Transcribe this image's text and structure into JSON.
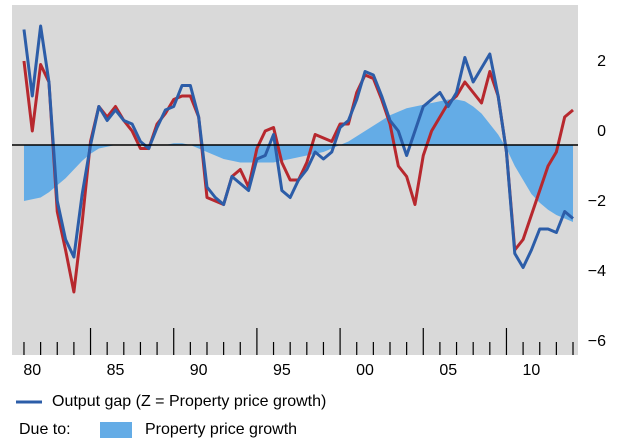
{
  "chart_data": {
    "type": "line",
    "x": [
      1980,
      1980.5,
      1981,
      1981.5,
      1982,
      1982.5,
      1983,
      1983.5,
      1984,
      1984.5,
      1985,
      1985.5,
      1986,
      1986.5,
      1987,
      1987.5,
      1988,
      1988.5,
      1989,
      1989.5,
      1990,
      1990.5,
      1991,
      1991.5,
      1992,
      1992.5,
      1993,
      1993.5,
      1994,
      1994.5,
      1995,
      1995.5,
      1996,
      1996.5,
      1997,
      1997.5,
      1998,
      1998.5,
      1999,
      1999.5,
      2000,
      2000.5,
      2001,
      2001.5,
      2002,
      2002.5,
      2003,
      2003.5,
      2004,
      2004.5,
      2005,
      2005.5,
      2006,
      2006.5,
      2007,
      2007.5,
      2008,
      2008.5,
      2009,
      2009.5,
      2010,
      2010.5,
      2011,
      2011.5,
      2012,
      2012.5,
      2013
    ],
    "series": [
      {
        "type": "area",
        "name": "Property price growth",
        "color": "#64ace6",
        "values": [
          -1.6,
          -1.55,
          -1.5,
          -1.35,
          -1.15,
          -0.95,
          -0.7,
          -0.45,
          -0.25,
          -0.1,
          -0.05,
          0,
          0,
          0,
          0,
          0,
          0,
          0,
          0.05,
          0.05,
          0,
          -0.1,
          -0.2,
          -0.3,
          -0.4,
          -0.45,
          -0.5,
          -0.5,
          -0.5,
          -0.5,
          -0.5,
          -0.45,
          -0.4,
          -0.35,
          -0.3,
          -0.25,
          -0.2,
          -0.1,
          0,
          0.1,
          0.25,
          0.4,
          0.55,
          0.7,
          0.85,
          0.95,
          1.05,
          1.1,
          1.15,
          1.2,
          1.25,
          1.3,
          1.3,
          1.25,
          1.1,
          0.9,
          0.6,
          0.3,
          -0.1,
          -0.6,
          -1.0,
          -1.4,
          -1.65,
          -1.85,
          -2.0,
          -2.1,
          -2.2
        ]
      },
      {
        "type": "line",
        "color": "#b7282e",
        "values": [
          2.4,
          0.4,
          2.3,
          1.8,
          -1.9,
          -3.0,
          -4.2,
          -2.2,
          0.1,
          1.1,
          0.8,
          1.1,
          0.7,
          0.4,
          -0.1,
          -0.1,
          0.6,
          0.9,
          1.3,
          1.4,
          1.4,
          0.8,
          -1.5,
          -1.6,
          -1.7,
          -0.9,
          -0.7,
          -1.2,
          -0.1,
          0.4,
          0.5,
          -0.5,
          -1.0,
          -1.0,
          -0.5,
          0.3,
          0.2,
          0.1,
          0.6,
          0.6,
          1.5,
          2.0,
          1.9,
          1.3,
          0.6,
          -0.6,
          -0.9,
          -1.7,
          -0.3,
          0.4,
          0.8,
          1.2,
          1.4,
          1.8,
          1.5,
          1.2,
          2.1,
          1.4,
          -0.2,
          -3.0,
          -2.7,
          -2.0,
          -1.3,
          -0.6,
          -0.2,
          0.8,
          1.0
        ]
      },
      {
        "type": "line",
        "name": "Output gap (Z = Property price growth)",
        "color": "#2c5da8",
        "values": [
          3.3,
          1.4,
          3.4,
          1.8,
          -1.6,
          -2.7,
          -3.2,
          -1.4,
          0,
          1.1,
          0.7,
          1.0,
          0.7,
          0.6,
          0.1,
          -0.1,
          0.5,
          1.0,
          1.1,
          1.7,
          1.7,
          0.8,
          -1.2,
          -1.5,
          -1.7,
          -0.9,
          -1.1,
          -1.3,
          -0.4,
          -0.3,
          0.3,
          -1.3,
          -1.5,
          -1.0,
          -0.7,
          -0.2,
          -0.4,
          -0.2,
          0.5,
          0.7,
          1.3,
          2.1,
          2.0,
          1.4,
          0.7,
          0.4,
          -0.3,
          0.4,
          1.1,
          1.3,
          1.5,
          1.1,
          1.5,
          2.5,
          1.8,
          2.2,
          2.6,
          1.4,
          -0.2,
          -3.1,
          -3.5,
          -3.0,
          -2.4,
          -2.4,
          -2.5,
          -1.9,
          -2.1
        ]
      }
    ],
    "legend_note": "Due to:",
    "xlim": [
      1979.28,
      2013.3
    ],
    "xticks": [
      {
        "value": 1980,
        "label": "80"
      },
      {
        "value": 1985,
        "label": "85"
      },
      {
        "value": 1990,
        "label": "90"
      },
      {
        "value": 1995,
        "label": "95"
      },
      {
        "value": 2000,
        "label": "00"
      },
      {
        "value": 2005,
        "label": "05"
      },
      {
        "value": 2010,
        "label": "10"
      }
    ],
    "xminorticks": [
      1980,
      1981,
      1982,
      1983,
      1984,
      1985,
      1986,
      1987,
      1988,
      1989,
      1990,
      1991,
      1992,
      1993,
      1994,
      1995,
      1996,
      1997,
      1998,
      1999,
      2000,
      2001,
      2002,
      2003,
      2004,
      2005,
      2006,
      2007,
      2008,
      2009,
      2010,
      2011,
      2012,
      2013
    ],
    "ylim": [
      -6,
      4
    ],
    "yticks": [
      {
        "value": -6,
        "label": "−6"
      },
      {
        "value": -4,
        "label": "−4"
      },
      {
        "value": -2,
        "label": "−2"
      },
      0,
      2
    ],
    "background": "#d9d9d9"
  }
}
